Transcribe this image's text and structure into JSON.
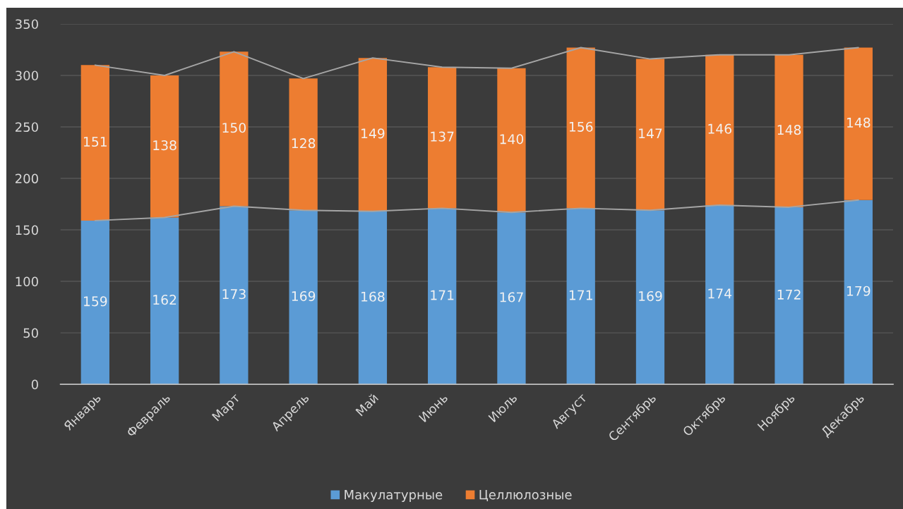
{
  "chart_data": {
    "type": "bar",
    "stacked": true,
    "categories": [
      "Январь",
      "Февраль",
      "Март",
      "Апрель",
      "Май",
      "Июнь",
      "Июль",
      "Август",
      "Сентябрь",
      "Октябрь",
      "Ноябрь",
      "Декабрь"
    ],
    "series": [
      {
        "name": "Макулатурные",
        "color": "#5b9bd5",
        "values": [
          159,
          162,
          173,
          169,
          168,
          171,
          167,
          171,
          169,
          174,
          172,
          179
        ],
        "value_labels": [
          "159",
          "162",
          "173",
          "169",
          "168",
          "171",
          "167",
          "171",
          "169",
          "174",
          "172",
          "179"
        ]
      },
      {
        "name": "Целлюлозные",
        "color": "#ed7d31",
        "values": [
          151,
          138,
          150,
          128,
          149,
          137,
          140,
          156,
          147,
          146,
          148,
          148
        ],
        "value_labels": [
          "151",
          "138",
          "150",
          "128",
          "149",
          "137",
          "140",
          "156",
          "147",
          "146",
          "148",
          "148"
        ]
      },
      {
        "type": "line",
        "color": "#a5a5a5",
        "values": [
          159,
          162,
          173,
          169,
          168,
          171,
          167,
          171,
          169,
          174,
          172,
          179
        ]
      },
      {
        "type": "line",
        "color": "#a5a5a5",
        "values": [
          310,
          300,
          323,
          297,
          317,
          308,
          307,
          327,
          316,
          320,
          320,
          327
        ]
      }
    ],
    "ylim": [
      0,
      350
    ],
    "yticks": [
      0,
      50,
      100,
      150,
      200,
      250,
      300,
      350
    ],
    "grid": "y",
    "legend": "bottom",
    "marker": "none",
    "line_style": "solid"
  }
}
